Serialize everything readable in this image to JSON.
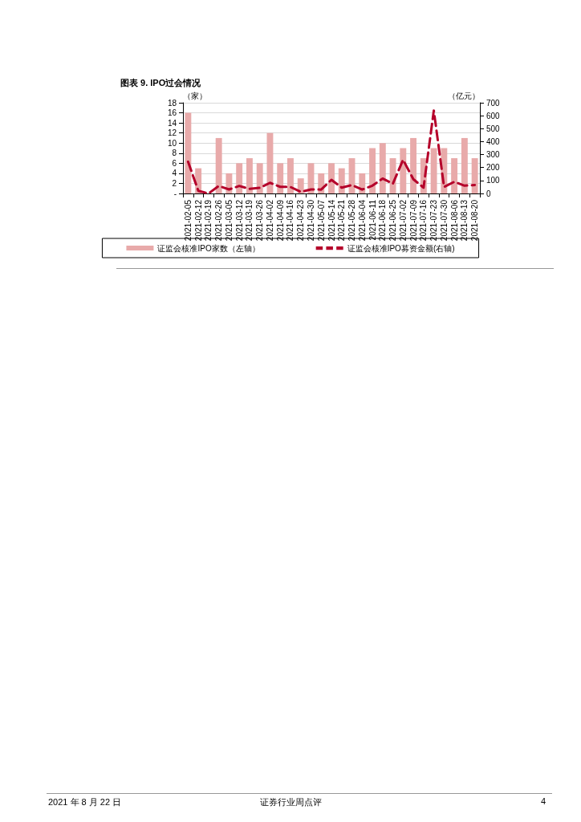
{
  "chart_data": {
    "type": "bar",
    "title": "图表 9. IPO过会情况",
    "ylabel": "（家）",
    "y2label": "（亿元）",
    "categories": [
      "2021-02-05",
      "2021-02-12",
      "2021-02-19",
      "2021-02-26",
      "2021-03-05",
      "2021-03-12",
      "2021-03-19",
      "2021-03-26",
      "2021-04-02",
      "2021-04-09",
      "2021-04-16",
      "2021-04-23",
      "2021-04-30",
      "2021-05-07",
      "2021-05-14",
      "2021-05-21",
      "2021-05-28",
      "2021-06-04",
      "2021-06-11",
      "2021-06-18",
      "2021-06-25",
      "2021-07-02",
      "2021-07-09",
      "2021-07-16",
      "2021-07-23",
      "2021-07-30",
      "2021-08-06",
      "2021-08-13",
      "2021-08-20"
    ],
    "series": [
      {
        "name": "证监会核准IPO家数（左轴）",
        "color": "#e8aaaa",
        "values": [
          16,
          5,
          0,
          11,
          4,
          6,
          7,
          6,
          12,
          6,
          7,
          3,
          6,
          4,
          6,
          5,
          7,
          4,
          9,
          10,
          7,
          9,
          11,
          7,
          9,
          9,
          7,
          11,
          7
        ]
      },
      {
        "name": "证监会核准IPO募资金额(右轴)",
        "type": "line",
        "axis": "y2",
        "color": "#b5002a",
        "line_style": "dashed",
        "values": [
          245,
          20,
          0,
          58,
          31,
          58,
          35,
          43,
          82,
          51,
          50,
          12,
          31,
          30,
          105,
          45,
          65,
          30,
          60,
          115,
          75,
          260,
          110,
          45,
          640,
          50,
          90,
          60,
          65
        ]
      }
    ],
    "ylim": [
      0,
      18
    ],
    "yticks": [
      {
        "value": 0,
        "label": "-"
      },
      2,
      4,
      6,
      8,
      10,
      12,
      14,
      16,
      18
    ],
    "y2lim": [
      0,
      700
    ],
    "y2ticks": [
      0,
      100,
      200,
      300,
      400,
      500,
      600,
      700
    ],
    "grid": "y",
    "legend": "bottom",
    "marker": "none",
    "annotations": [
      "2021 年 8 月 22 日",
      "证券行业周点评",
      "4"
    ]
  }
}
